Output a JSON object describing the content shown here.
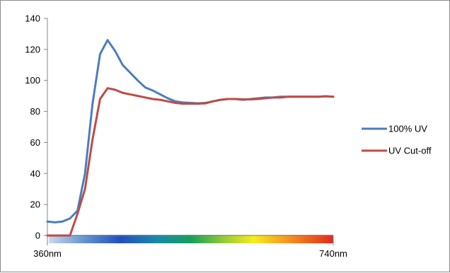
{
  "chart_data": {
    "type": "line",
    "title": "",
    "xlabel": "",
    "ylabel": "",
    "ylim": [
      0,
      140
    ],
    "yticks": [
      0,
      20,
      40,
      60,
      80,
      100,
      120,
      140
    ],
    "x_tick_labels": [
      "360nm",
      "740nm"
    ],
    "x_range_nm": [
      360,
      740
    ],
    "grid": false,
    "legend_position": "right",
    "spectrum_bar": true,
    "x": [
      360,
      370,
      380,
      390,
      400,
      410,
      420,
      430,
      440,
      450,
      460,
      470,
      480,
      490,
      500,
      510,
      520,
      530,
      540,
      550,
      560,
      570,
      580,
      590,
      600,
      610,
      620,
      630,
      640,
      650,
      660,
      670,
      680,
      690,
      700,
      710,
      720,
      730,
      740
    ],
    "series": [
      {
        "name": "100% UV",
        "color": "#4a7ebb",
        "values": [
          9,
          8.5,
          9,
          11,
          16,
          40,
          85,
          117,
          126,
          119,
          110,
          105,
          100,
          95.5,
          93.5,
          91,
          88.5,
          86.5,
          85.8,
          85.5,
          85.2,
          85.5,
          86.5,
          87.5,
          88,
          88,
          87.5,
          88,
          88.5,
          89,
          89,
          89.5,
          89.5,
          89.5,
          89.5,
          89.5,
          89.5,
          89.8,
          89.5
        ]
      },
      {
        "name": "UV Cut-off",
        "color": "#be4b48",
        "values": [
          0,
          0,
          0,
          0,
          14,
          30,
          62,
          88,
          95,
          94,
          92,
          91,
          90,
          89,
          88,
          87.5,
          86.5,
          85.5,
          85,
          85,
          85,
          85.2,
          86.5,
          87.5,
          88,
          88,
          87.8,
          87.8,
          88,
          88.5,
          89,
          89,
          89.5,
          89.5,
          89.5,
          89.5,
          89.5,
          89.8,
          89.5
        ]
      }
    ]
  }
}
